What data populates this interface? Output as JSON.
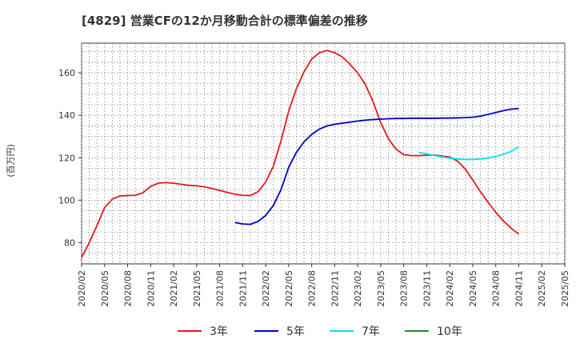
{
  "chart_data": {
    "type": "line",
    "title": "[4829]  営業CFの12か月移動合計の標準偏差の推移",
    "ylabel": "(百万円)",
    "xlabel": "",
    "ylim": [
      70,
      174
    ],
    "yticks": [
      80,
      100,
      120,
      140,
      160
    ],
    "x_ticks": [
      "2020/02",
      "2020/05",
      "2020/08",
      "2020/11",
      "2021/02",
      "2021/05",
      "2021/08",
      "2021/11",
      "2022/02",
      "2022/05",
      "2022/08",
      "2022/11",
      "2023/02",
      "2023/05",
      "2023/08",
      "2023/11",
      "2024/02",
      "2024/05",
      "2024/08",
      "2024/11",
      "2025/02",
      "2025/05"
    ],
    "grid": true,
    "legend_position": "bottom",
    "series": [
      {
        "name": "3年",
        "color": "#e41a1c",
        "x": [
          "2020/02",
          "2020/03",
          "2020/04",
          "2020/05",
          "2020/06",
          "2020/07",
          "2020/08",
          "2020/09",
          "2020/10",
          "2020/11",
          "2020/12",
          "2021/01",
          "2021/02",
          "2021/03",
          "2021/04",
          "2021/05",
          "2021/06",
          "2021/07",
          "2021/08",
          "2021/09",
          "2021/10",
          "2021/11",
          "2021/12",
          "2022/01",
          "2022/02",
          "2022/03",
          "2022/04",
          "2022/05",
          "2022/06",
          "2022/07",
          "2022/08",
          "2022/09",
          "2022/10",
          "2022/11",
          "2022/12",
          "2023/01",
          "2023/02",
          "2023/03",
          "2023/04",
          "2023/05",
          "2023/06",
          "2023/07",
          "2023/08",
          "2023/09",
          "2023/10",
          "2023/11",
          "2023/12",
          "2024/01",
          "2024/02",
          "2024/03",
          "2024/04",
          "2024/05",
          "2024/06",
          "2024/07",
          "2024/08",
          "2024/09",
          "2024/10",
          "2024/11"
        ],
        "values": [
          73,
          80,
          88,
          96.5,
          100.5,
          102,
          102.2,
          102.3,
          103.5,
          106.5,
          108,
          108.3,
          108,
          107.5,
          107,
          106.8,
          106.3,
          105.5,
          104.6,
          103.7,
          102.8,
          102.3,
          102.2,
          104,
          108.5,
          116,
          128,
          142,
          152.5,
          160.5,
          166.5,
          169.5,
          170.5,
          169.5,
          167.5,
          164,
          160,
          154.5,
          146.5,
          136.5,
          129,
          124,
          121.5,
          121,
          121,
          121.2,
          121.3,
          120.8,
          120.3,
          118.5,
          114.8,
          109.5,
          104,
          99,
          94.3,
          90.2,
          86.8,
          84
        ]
      },
      {
        "name": "5年",
        "color": "#0000cc",
        "x": [
          "2021/10",
          "2021/11",
          "2021/12",
          "2022/01",
          "2022/02",
          "2022/03",
          "2022/04",
          "2022/05",
          "2022/06",
          "2022/07",
          "2022/08",
          "2022/09",
          "2022/10",
          "2022/11",
          "2022/12",
          "2023/01",
          "2023/02",
          "2023/03",
          "2023/04",
          "2023/05",
          "2023/06",
          "2023/07",
          "2023/08",
          "2023/09",
          "2023/10",
          "2023/11",
          "2023/12",
          "2024/01",
          "2024/02",
          "2024/03",
          "2024/04",
          "2024/05",
          "2024/06",
          "2024/07",
          "2024/08",
          "2024/09",
          "2024/10",
          "2024/11"
        ],
        "values": [
          89.5,
          88.8,
          88.6,
          90,
          92.8,
          97.5,
          105,
          115.5,
          122.5,
          127.5,
          131,
          133.5,
          135,
          135.8,
          136.3,
          136.8,
          137.3,
          137.7,
          138,
          138.2,
          138.4,
          138.5,
          138.5,
          138.6,
          138.6,
          138.6,
          138.6,
          138.7,
          138.7,
          138.8,
          138.9,
          139.1,
          139.6,
          140.4,
          141.3,
          142.2,
          142.9,
          143.2
        ]
      },
      {
        "name": "7年",
        "color": "#00e5ee",
        "x": [
          "2023/10",
          "2023/11",
          "2023/12",
          "2024/01",
          "2024/02",
          "2024/03",
          "2024/04",
          "2024/05",
          "2024/06",
          "2024/07",
          "2024/08",
          "2024/09",
          "2024/10",
          "2024/11"
        ],
        "values": [
          122.5,
          121.8,
          121.1,
          120.4,
          119.8,
          119.4,
          119.2,
          119.2,
          119.4,
          119.9,
          120.6,
          121.6,
          123,
          125.2
        ]
      },
      {
        "name": "10年",
        "color": "#228b22",
        "x": [],
        "values": []
      }
    ]
  }
}
